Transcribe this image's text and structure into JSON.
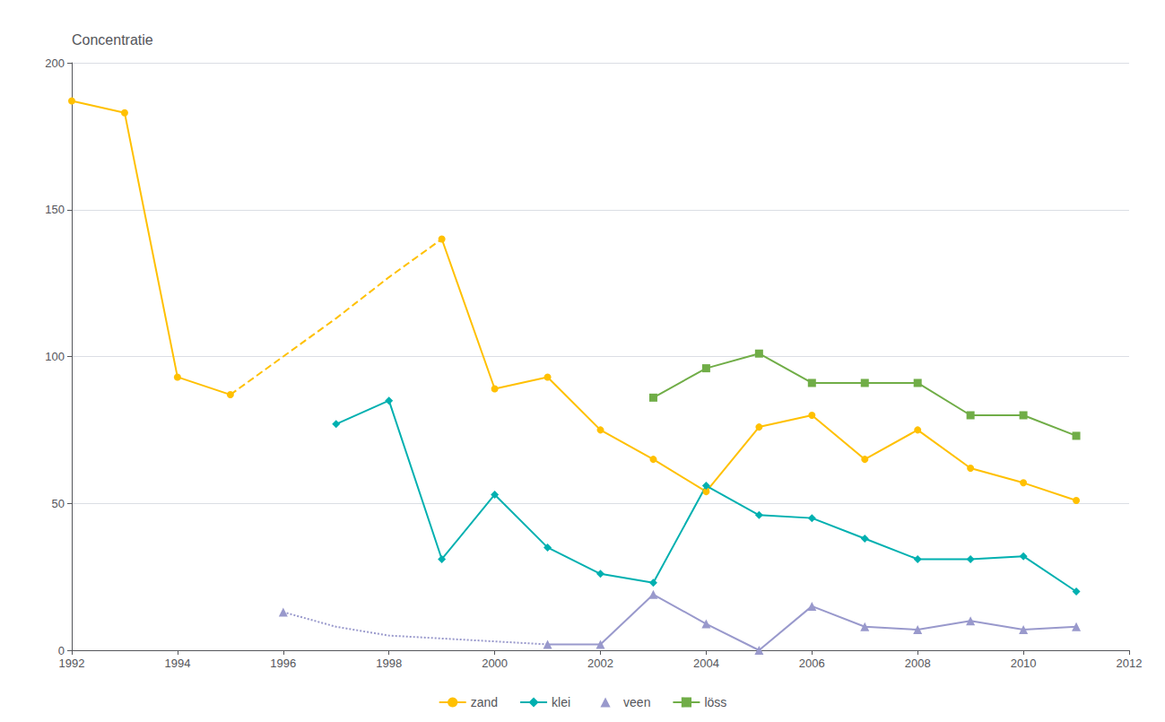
{
  "chart_data": {
    "type": "line",
    "ylabel": "Concentratie",
    "xlim": [
      1992,
      2012
    ],
    "xticks": [
      1992,
      1994,
      1996,
      1998,
      2000,
      2002,
      2004,
      2006,
      2008,
      2010,
      2012
    ],
    "ylim": [
      0,
      200
    ],
    "yticks": [
      0,
      50,
      100,
      150,
      200
    ],
    "grid": "y",
    "legend": "bottom",
    "series": [
      {
        "name": "zand",
        "color": "#FFC000",
        "marker": "circle",
        "line_style": "solid",
        "x": [
          1992,
          1993,
          1994,
          1995
        ],
        "values": [
          187,
          183,
          93,
          87
        ]
      },
      {
        "name": "zand",
        "color": "#FFC000",
        "marker": "none",
        "line_style": "dashed",
        "x": [
          1995,
          1996,
          1997,
          1998,
          1999
        ],
        "values": [
          87,
          100,
          113,
          127,
          140
        ]
      },
      {
        "name": "zand",
        "color": "#FFC000",
        "marker": "circle",
        "line_style": "solid",
        "x": [
          1999,
          2000,
          2001,
          2002,
          2003,
          2004,
          2005,
          2006,
          2007,
          2008,
          2009,
          2010,
          2011
        ],
        "values": [
          140,
          89,
          93,
          75,
          65,
          54,
          76,
          80,
          65,
          75,
          62,
          57,
          51
        ]
      },
      {
        "name": "klei",
        "color": "#00B0B0",
        "marker": "diamond",
        "line_style": "solid",
        "x": [
          1997,
          1998,
          1999,
          2000,
          2001,
          2002,
          2003,
          2004,
          2005,
          2006,
          2007,
          2008,
          2009,
          2010,
          2011
        ],
        "values": [
          77,
          85,
          31,
          53,
          35,
          26,
          23,
          56,
          46,
          45,
          38,
          31,
          31,
          32,
          20
        ]
      },
      {
        "name": "veen",
        "color": "#9999CC",
        "marker": "triangle",
        "line_style": "none",
        "x": [
          1996
        ],
        "values": [
          13
        ]
      },
      {
        "name": "veen",
        "color": "#9999CC",
        "marker": "none",
        "line_style": "dotted",
        "x": [
          1996,
          1997,
          1998,
          1999,
          2000,
          2001
        ],
        "values": [
          13,
          8,
          5,
          4,
          3,
          2
        ]
      },
      {
        "name": "veen",
        "color": "#9999CC",
        "marker": "triangle",
        "line_style": "solid",
        "x": [
          2001,
          2002,
          2003,
          2004,
          2005,
          2006,
          2007,
          2008,
          2009,
          2010,
          2011
        ],
        "values": [
          2,
          2,
          19,
          9,
          0,
          15,
          8,
          7,
          10,
          7,
          8
        ]
      },
      {
        "name": "löss",
        "color": "#70AD47",
        "marker": "square",
        "line_style": "solid",
        "x": [
          2003,
          2004,
          2005,
          2006,
          2007,
          2008,
          2009,
          2010,
          2011
        ],
        "values": [
          86,
          96,
          101,
          91,
          91,
          91,
          80,
          80,
          73
        ]
      }
    ]
  }
}
